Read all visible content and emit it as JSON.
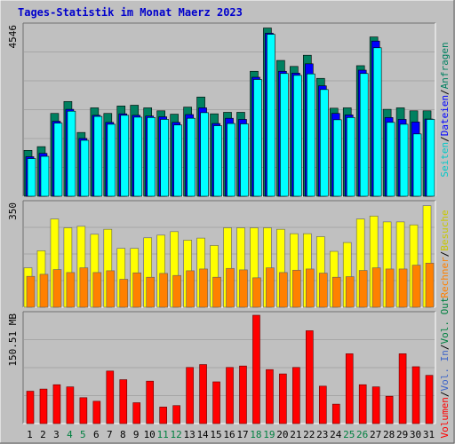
{
  "title": "Tages-Statistik im Monat Maerz 2023",
  "colors": {
    "background": "#c0c0c0",
    "plot_bg": "#c0c0c0",
    "grid": "#a6a6a6",
    "title": "#0000cc",
    "anfragen": "#008060",
    "dateien": "#0000ff",
    "seiten": "#00ffff",
    "besuche": "#ffff00",
    "rechner": "#ff8000",
    "vol_in": "#3c64c8",
    "vol_out": "#008040",
    "volumen": "#ff0000",
    "weekend_day": "#008040",
    "weekday": "#000000"
  },
  "right_labels": {
    "top": [
      {
        "text": "Anfragen",
        "color": "#008060"
      },
      {
        "text": "Dateien",
        "color": "#0000ff"
      },
      {
        "text": "Seiten",
        "color": "#00c8c8"
      }
    ],
    "middle": [
      {
        "text": "Besuche",
        "color": "#c8c800"
      },
      {
        "text": "Rechner",
        "color": "#ff8000"
      }
    ],
    "bottom": [
      {
        "text": "Vol. Out",
        "color": "#008040"
      },
      {
        "text": "Vol. In",
        "color": "#3c64c8"
      },
      {
        "text": "Volumen",
        "color": "#ff0000"
      }
    ]
  },
  "chart_data": [
    {
      "type": "bar",
      "title": "Anfragen / Dateien / Seiten",
      "ylabel": "4546",
      "ylim": [
        0,
        4546
      ],
      "categories": [
        "1",
        "2",
        "3",
        "4",
        "5",
        "6",
        "7",
        "8",
        "9",
        "10",
        "11",
        "12",
        "13",
        "14",
        "15",
        "16",
        "17",
        "18",
        "19",
        "20",
        "21",
        "22",
        "23",
        "24",
        "25",
        "26",
        "27",
        "28",
        "29",
        "30",
        "31"
      ],
      "series": [
        {
          "name": "Anfragen",
          "values": [
            1230,
            1330,
            2220,
            2540,
            1710,
            2370,
            2220,
            2420,
            2440,
            2370,
            2290,
            2200,
            2390,
            2660,
            2210,
            2250,
            2250,
            3350,
            4510,
            3640,
            3480,
            3780,
            3160,
            2360,
            2370,
            3500,
            4270,
            2330,
            2370,
            2290,
            2290
          ]
        },
        {
          "name": "Dateien",
          "values": [
            1060,
            1150,
            2010,
            2330,
            1550,
            2170,
            1980,
            2210,
            2170,
            2150,
            2130,
            1980,
            2190,
            2370,
            1950,
            2090,
            2060,
            3190,
            4370,
            3350,
            3300,
            3550,
            2960,
            2220,
            2180,
            3380,
            4160,
            2110,
            2060,
            1990,
            2070
          ]
        },
        {
          "name": "Seiten",
          "values": [
            1010,
            1070,
            1960,
            2280,
            1500,
            2140,
            1930,
            2170,
            2120,
            2110,
            2060,
            1910,
            2090,
            2240,
            1890,
            1950,
            1940,
            3130,
            4340,
            3290,
            3240,
            3280,
            2860,
            2050,
            2110,
            3290,
            3980,
            1980,
            1930,
            1670,
            2060
          ]
        }
      ]
    },
    {
      "type": "bar",
      "title": "Besuche / Rechner",
      "ylabel": "350",
      "ylim": [
        0,
        350
      ],
      "categories": [
        "1",
        "2",
        "3",
        "4",
        "5",
        "6",
        "7",
        "8",
        "9",
        "10",
        "11",
        "12",
        "13",
        "14",
        "15",
        "16",
        "17",
        "18",
        "19",
        "20",
        "21",
        "22",
        "23",
        "24",
        "25",
        "26",
        "27",
        "28",
        "29",
        "30",
        "31"
      ],
      "series": [
        {
          "name": "Besuche",
          "values": [
            134,
            192,
            300,
            270,
            275,
            248,
            265,
            200,
            200,
            236,
            245,
            257,
            228,
            235,
            210,
            270,
            270,
            270,
            270,
            265,
            250,
            250,
            240,
            190,
            220,
            300,
            310,
            290,
            290,
            280,
            345
          ]
        },
        {
          "name": "Rechner",
          "values": [
            105,
            112,
            128,
            118,
            134,
            118,
            124,
            95,
            117,
            102,
            115,
            108,
            124,
            130,
            102,
            132,
            127,
            100,
            134,
            118,
            126,
            130,
            116,
            102,
            104,
            125,
            134,
            130,
            130,
            143,
            150
          ]
        }
      ]
    },
    {
      "type": "bar",
      "title": "Volumen / Vol. In / Vol. Out",
      "ylabel": "150.51 MB",
      "ylim": [
        0,
        150.51
      ],
      "categories": [
        "1",
        "2",
        "3",
        "4",
        "5",
        "6",
        "7",
        "8",
        "9",
        "10",
        "11",
        "12",
        "13",
        "14",
        "15",
        "16",
        "17",
        "18",
        "19",
        "20",
        "21",
        "22",
        "23",
        "24",
        "25",
        "26",
        "27",
        "28",
        "29",
        "30",
        "31"
      ],
      "series": [
        {
          "name": "Volumen",
          "values": [
            45,
            48,
            54,
            51,
            36,
            31,
            73,
            61,
            29,
            59,
            23,
            25,
            78,
            82,
            58,
            78,
            80,
            150.51,
            75,
            69,
            78,
            129,
            52,
            27,
            97,
            54,
            51,
            38,
            97,
            79,
            67
          ]
        }
      ]
    }
  ],
  "days": [
    {
      "label": "1",
      "weekend": false
    },
    {
      "label": "2",
      "weekend": false
    },
    {
      "label": "3",
      "weekend": false
    },
    {
      "label": "4",
      "weekend": true
    },
    {
      "label": "5",
      "weekend": true
    },
    {
      "label": "6",
      "weekend": false
    },
    {
      "label": "7",
      "weekend": false
    },
    {
      "label": "8",
      "weekend": false
    },
    {
      "label": "9",
      "weekend": false
    },
    {
      "label": "10",
      "weekend": false
    },
    {
      "label": "11",
      "weekend": true
    },
    {
      "label": "12",
      "weekend": true
    },
    {
      "label": "13",
      "weekend": false
    },
    {
      "label": "14",
      "weekend": false
    },
    {
      "label": "15",
      "weekend": false
    },
    {
      "label": "16",
      "weekend": false
    },
    {
      "label": "17",
      "weekend": false
    },
    {
      "label": "18",
      "weekend": true
    },
    {
      "label": "19",
      "weekend": true
    },
    {
      "label": "20",
      "weekend": false
    },
    {
      "label": "21",
      "weekend": false
    },
    {
      "label": "22",
      "weekend": false
    },
    {
      "label": "23",
      "weekend": false
    },
    {
      "label": "24",
      "weekend": false
    },
    {
      "label": "25",
      "weekend": true
    },
    {
      "label": "26",
      "weekend": true
    },
    {
      "label": "27",
      "weekend": false
    },
    {
      "label": "28",
      "weekend": false
    },
    {
      "label": "29",
      "weekend": false
    },
    {
      "label": "30",
      "weekend": false
    },
    {
      "label": "31",
      "weekend": false
    }
  ]
}
